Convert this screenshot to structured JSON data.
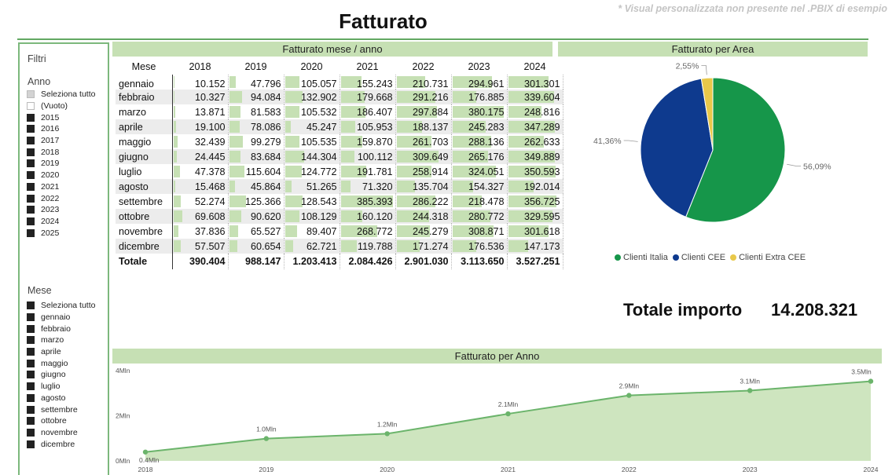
{
  "header": {
    "title": "Fatturato",
    "note": "* Visual personalizzata non presente nel .PBIX di esempio"
  },
  "filters": {
    "title": "Filtri",
    "anno": {
      "title": "Anno",
      "items": [
        {
          "label": "Seleziona tutto",
          "state": "partial"
        },
        {
          "label": "(Vuoto)",
          "state": "empty"
        },
        {
          "label": "2015",
          "state": "checked"
        },
        {
          "label": "2016",
          "state": "checked"
        },
        {
          "label": "2017",
          "state": "checked"
        },
        {
          "label": "2018",
          "state": "checked"
        },
        {
          "label": "2019",
          "state": "checked"
        },
        {
          "label": "2020",
          "state": "checked"
        },
        {
          "label": "2021",
          "state": "checked"
        },
        {
          "label": "2022",
          "state": "checked"
        },
        {
          "label": "2023",
          "state": "checked"
        },
        {
          "label": "2024",
          "state": "checked"
        },
        {
          "label": "2025",
          "state": "checked"
        }
      ]
    },
    "mese": {
      "title": "Mese",
      "items": [
        {
          "label": "Seleziona tutto",
          "state": "checked"
        },
        {
          "label": "gennaio",
          "state": "checked"
        },
        {
          "label": "febbraio",
          "state": "checked"
        },
        {
          "label": "marzo",
          "state": "checked"
        },
        {
          "label": "aprile",
          "state": "checked"
        },
        {
          "label": "maggio",
          "state": "checked"
        },
        {
          "label": "giugno",
          "state": "checked"
        },
        {
          "label": "luglio",
          "state": "checked"
        },
        {
          "label": "agosto",
          "state": "checked"
        },
        {
          "label": "settembre",
          "state": "checked"
        },
        {
          "label": "ottobre",
          "state": "checked"
        },
        {
          "label": "novembre",
          "state": "checked"
        },
        {
          "label": "dicembre",
          "state": "checked"
        }
      ]
    }
  },
  "kpi": {
    "label": "Totale importo",
    "value": "14.208.321"
  },
  "colors": {
    "accent_light": "#c6e0b4",
    "accent_line": "#62a862",
    "italia": "#16964a",
    "cee": "#0e3a8e",
    "extra_cee": "#e8c84a"
  },
  "chart_data": [
    {
      "type": "table",
      "title": "Fatturato mese / anno",
      "row_header": "Mese",
      "columns": [
        "2018",
        "2019",
        "2020",
        "2021",
        "2022",
        "2023",
        "2024"
      ],
      "rows": [
        {
          "label": "gennaio",
          "values": [
            "10.152",
            "47.796",
            "105.057",
            "155.243",
            "210.731",
            "294.961",
            "301.301"
          ]
        },
        {
          "label": "febbraio",
          "values": [
            "10.327",
            "94.084",
            "132.902",
            "179.668",
            "291.216",
            "176.885",
            "339.604"
          ]
        },
        {
          "label": "marzo",
          "values": [
            "13.871",
            "81.583",
            "105.532",
            "186.407",
            "297.884",
            "380.175",
            "248.816"
          ]
        },
        {
          "label": "aprile",
          "values": [
            "19.100",
            "78.086",
            "45.247",
            "105.953",
            "188.137",
            "245.283",
            "347.289"
          ]
        },
        {
          "label": "maggio",
          "values": [
            "32.439",
            "99.279",
            "105.535",
            "159.870",
            "261.703",
            "288.136",
            "262.633"
          ]
        },
        {
          "label": "giugno",
          "values": [
            "24.445",
            "83.684",
            "144.304",
            "100.112",
            "309.649",
            "265.176",
            "349.889"
          ]
        },
        {
          "label": "luglio",
          "values": [
            "47.378",
            "115.604",
            "124.772",
            "191.781",
            "258.914",
            "324.051",
            "350.593"
          ]
        },
        {
          "label": "agosto",
          "values": [
            "15.468",
            "45.864",
            "51.265",
            "71.320",
            "135.704",
            "154.327",
            "192.014"
          ]
        },
        {
          "label": "settembre",
          "values": [
            "52.274",
            "125.366",
            "128.543",
            "385.393",
            "286.222",
            "218.478",
            "356.725"
          ]
        },
        {
          "label": "ottobre",
          "values": [
            "69.608",
            "90.620",
            "108.129",
            "160.120",
            "244.318",
            "280.772",
            "329.595"
          ]
        },
        {
          "label": "novembre",
          "values": [
            "37.836",
            "65.527",
            "89.407",
            "268.772",
            "245.279",
            "308.871",
            "301.618"
          ]
        },
        {
          "label": "dicembre",
          "values": [
            "57.507",
            "60.654",
            "62.721",
            "119.788",
            "171.274",
            "176.536",
            "147.173"
          ]
        }
      ],
      "total": {
        "label": "Totale",
        "values": [
          "390.404",
          "988.147",
          "1.203.413",
          "2.084.426",
          "2.901.030",
          "3.113.650",
          "3.527.251"
        ]
      }
    },
    {
      "type": "pie",
      "title": "Fatturato per Area",
      "slices": [
        {
          "name": "Clienti Italia",
          "value": 56.09,
          "label": "56,09%",
          "color": "#16964a"
        },
        {
          "name": "Clienti CEE",
          "value": 41.36,
          "label": "41,36%",
          "color": "#0e3a8e"
        },
        {
          "name": "Clienti Extra CEE",
          "value": 2.55,
          "label": "2,55%",
          "color": "#e8c84a"
        }
      ],
      "legend": "bottom"
    },
    {
      "type": "area",
      "title": "Fatturato per Anno",
      "x": [
        "2018",
        "2019",
        "2020",
        "2021",
        "2022",
        "2023",
        "2024"
      ],
      "values": [
        390404,
        988147,
        1203413,
        2084426,
        2901030,
        3113650,
        3527251
      ],
      "data_labels": [
        "0.4Mln",
        "1.0Mln",
        "1.2Mln",
        "2.1Mln",
        "2.9Mln",
        "3.1Mln",
        "3.5Mln"
      ],
      "y_ticks": [
        {
          "value": 0,
          "label": "0Mln"
        },
        {
          "value": 2000000,
          "label": "2Mln"
        },
        {
          "value": 4000000,
          "label": "4Mln"
        }
      ],
      "ylim": [
        0,
        4000000
      ],
      "grid": false
    }
  ]
}
